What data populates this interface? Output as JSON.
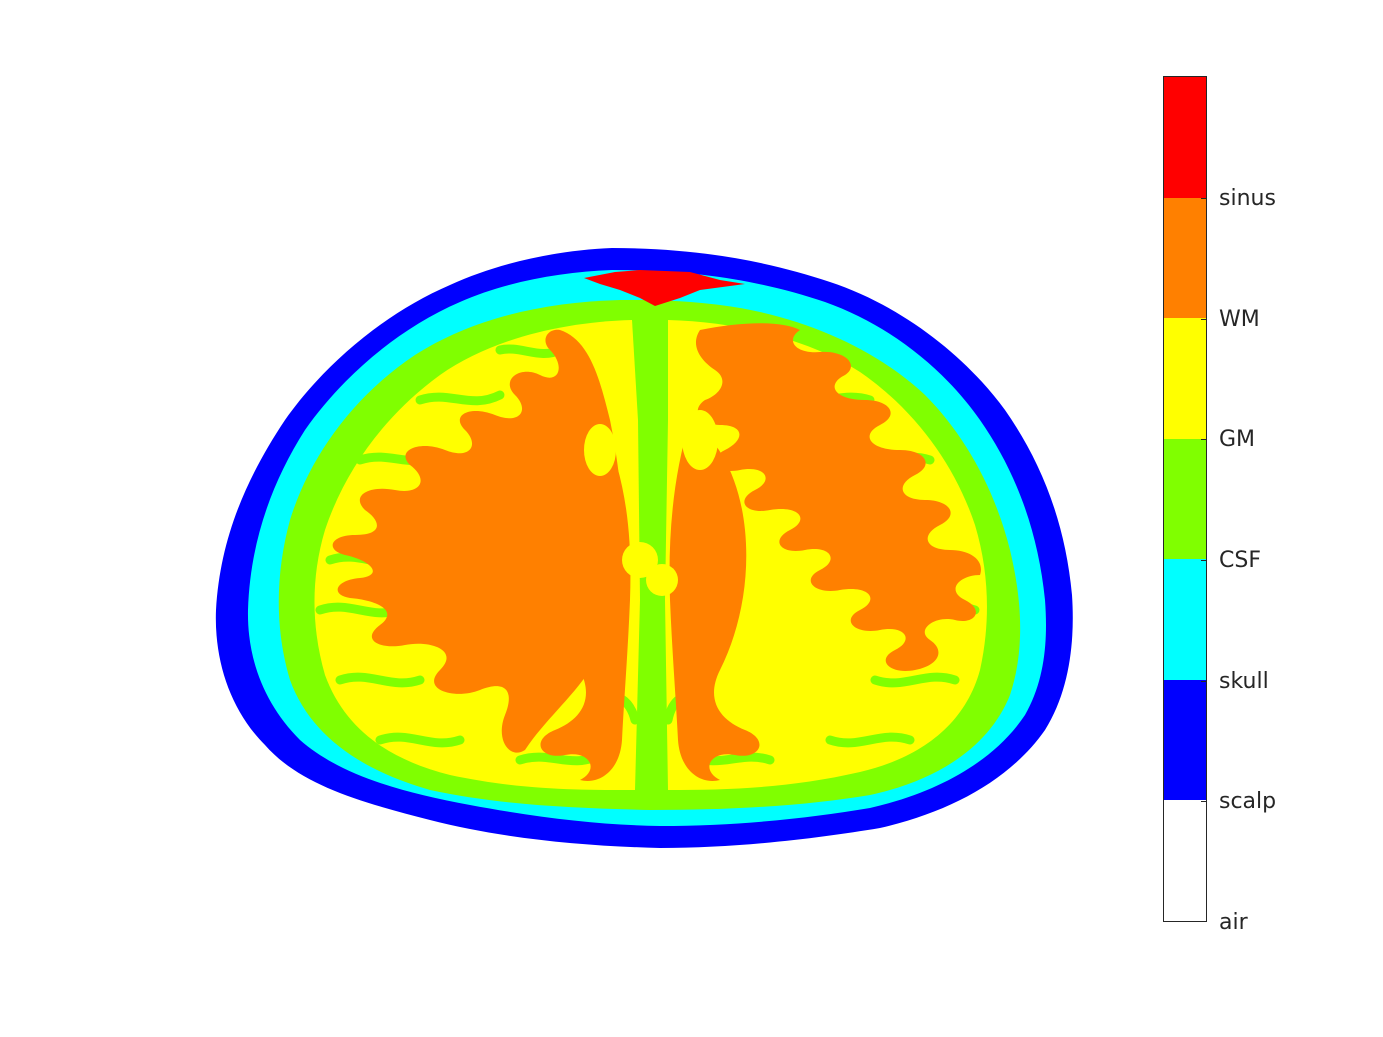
{
  "tissue_classes": [
    {
      "id": "air",
      "label": "air",
      "color": "#ffffff"
    },
    {
      "id": "scalp",
      "label": "scalp",
      "color": "#0000ff"
    },
    {
      "id": "skull",
      "label": "skull",
      "color": "#00ffff"
    },
    {
      "id": "csf",
      "label": "CSF",
      "color": "#80ff00"
    },
    {
      "id": "gm",
      "label": "GM",
      "color": "#ffff00"
    },
    {
      "id": "wm",
      "label": "WM",
      "color": "#ff8000"
    },
    {
      "id": "sinus",
      "label": "sinus",
      "color": "#ff0000"
    }
  ],
  "colorbar": {
    "tick_labels": [
      "air",
      "scalp",
      "skull",
      "CSF",
      "GM",
      "WM",
      "sinus"
    ],
    "segment_colors_top_to_bottom": [
      "#ff0000",
      "#ff8000",
      "#ffff00",
      "#80ff00",
      "#00ffff",
      "#0000ff",
      "#ffffff"
    ],
    "border_color": "#262626"
  },
  "image": {
    "view": "axial brain slice segmentation",
    "pixelated": true
  }
}
